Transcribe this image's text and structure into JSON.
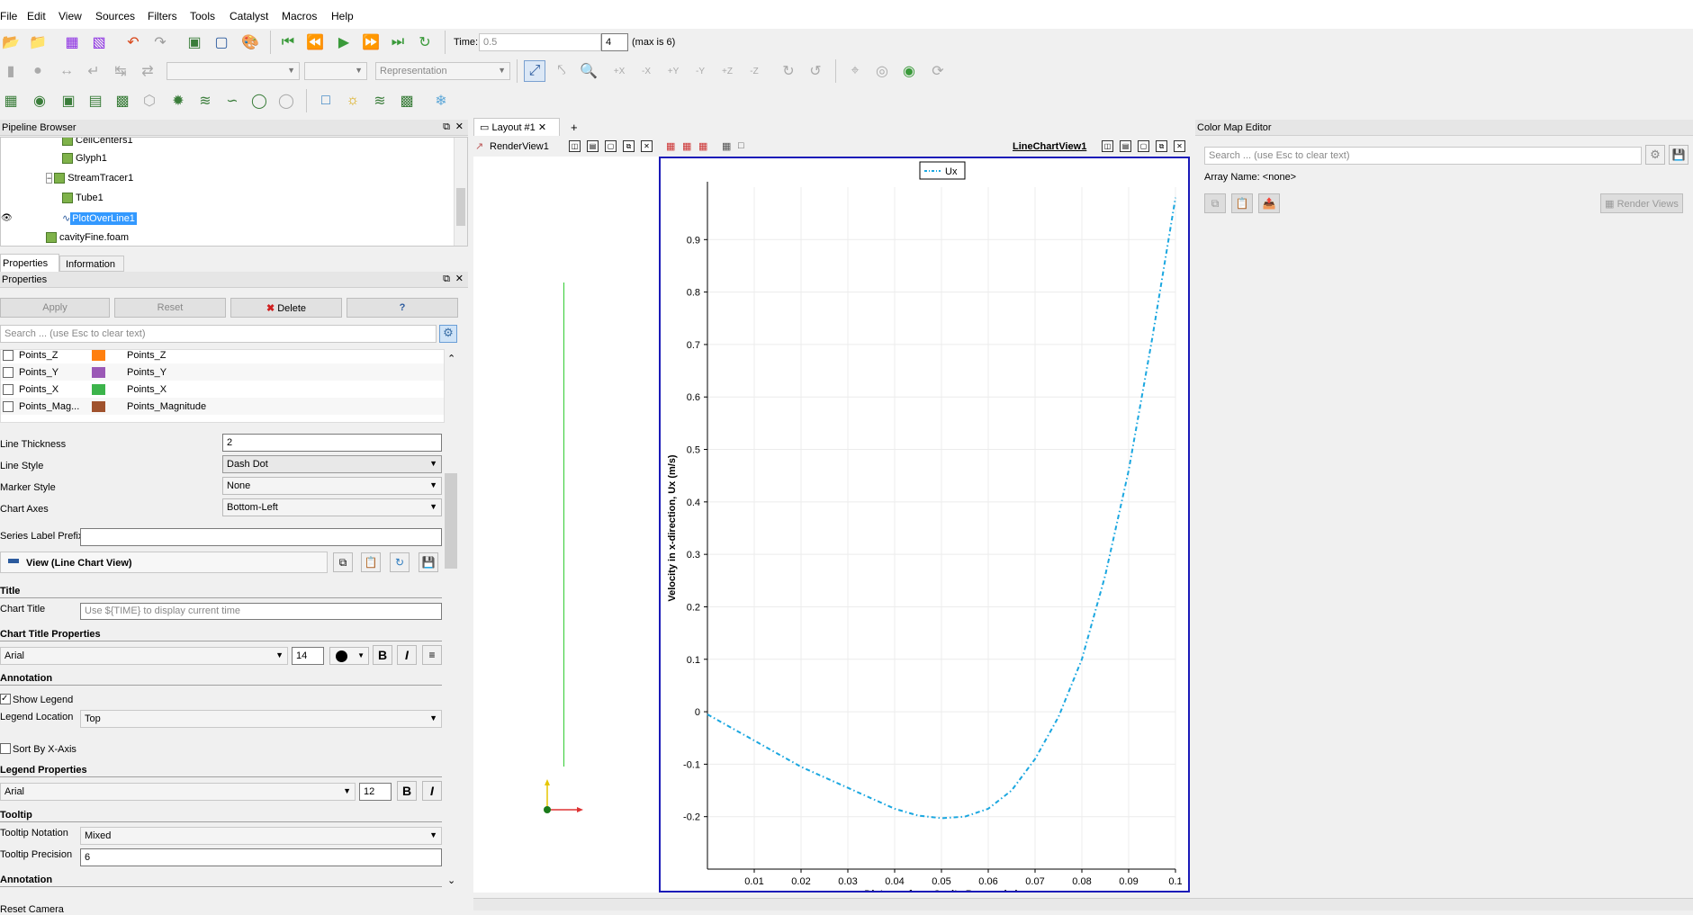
{
  "menu": [
    "File",
    "Edit",
    "View",
    "Sources",
    "Filters",
    "Tools",
    "Catalyst",
    "Macros",
    "Help"
  ],
  "time": {
    "label": "Time:",
    "value": "0.5",
    "step": "4",
    "max": "(max is 6)"
  },
  "toolbar2": {
    "representation": "Representation"
  },
  "pipeline": {
    "header": "Pipeline Browser",
    "items": [
      "CellCenters1",
      "Glyph1",
      "StreamTracer1",
      "Tube1",
      "PlotOverLine1",
      "cavityFine.foam"
    ]
  },
  "tabs": {
    "properties": "Properties",
    "information": "Information"
  },
  "props": {
    "header": "Properties",
    "apply": "Apply",
    "reset": "Reset",
    "delete": "Delete",
    "help": "?",
    "search_placeholder": "Search ... (use Esc to clear text)",
    "series": [
      {
        "name": "Points_Z",
        "label": "Points_Z",
        "color": "#ff7f0e"
      },
      {
        "name": "Points_Y",
        "label": "Points_Y",
        "color": "#9b59b6"
      },
      {
        "name": "Points_X",
        "label": "Points_X",
        "color": "#3cb44b"
      },
      {
        "name": "Points_Mag...",
        "label": "Points_Magnitude",
        "color": "#a0522d"
      }
    ],
    "line_thickness_label": "Line Thickness",
    "line_thickness": "2",
    "line_style_label": "Line Style",
    "line_style": "Dash Dot",
    "marker_style_label": "Marker Style",
    "marker_style": "None",
    "chart_axes_label": "Chart Axes",
    "chart_axes": "Bottom-Left",
    "series_prefix_label": "Series Label Prefix",
    "view_section": "View (Line Chart View)",
    "title_section": "Title",
    "chart_title_label": "Chart Title",
    "chart_title_placeholder": "Use ${TIME} to display current time",
    "chart_title_props": "Chart Title Properties",
    "font1": "Arial",
    "size1": "14",
    "annotation": "Annotation",
    "show_legend": "Show Legend",
    "legend_location_label": "Legend Location",
    "legend_location": "Top",
    "sort_x": "Sort By X-Axis",
    "legend_props": "Legend Properties",
    "font2": "Arial",
    "size2": "12",
    "tooltip": "Tooltip",
    "tooltip_notation_label": "Tooltip Notation",
    "tooltip_notation": "Mixed",
    "tooltip_precision_label": "Tooltip Precision",
    "tooltip_precision": "6",
    "annotation2": "Annotation",
    "reset_camera": "Reset Camera"
  },
  "layout": {
    "tab": "Layout #1",
    "plus": "+",
    "renderview": "RenderView1",
    "lineview": "LineChartView1"
  },
  "colormap": {
    "header": "Color Map Editor",
    "search_placeholder": "Search ... (use Esc to clear text)",
    "array_name": "Array Name: <none>",
    "render_views": "Render Views"
  },
  "chart_data": {
    "type": "line",
    "series": [
      {
        "name": "Ux",
        "color": "#1ba7e0",
        "style": "dash-dot",
        "x": [
          0,
          0.005,
          0.01,
          0.015,
          0.02,
          0.025,
          0.03,
          0.035,
          0.04,
          0.045,
          0.05,
          0.055,
          0.06,
          0.065,
          0.07,
          0.075,
          0.08,
          0.085,
          0.09,
          0.095,
          0.1
        ],
        "y": [
          -0.005,
          -0.03,
          -0.055,
          -0.08,
          -0.105,
          -0.125,
          -0.145,
          -0.165,
          -0.185,
          -0.198,
          -0.203,
          -0.2,
          -0.185,
          -0.15,
          -0.09,
          -0.01,
          0.1,
          0.26,
          0.46,
          0.71,
          0.98
        ]
      }
    ],
    "xlabel": "Distance from Cavity Base, y (m)",
    "ylabel": "Velocity in x-direction, Ux (m/s)",
    "xticks": [
      "0.01",
      "0.02",
      "0.03",
      "0.04",
      "0.05",
      "0.06",
      "0.07",
      "0.08",
      "0.09",
      "0.1"
    ],
    "yticks": [
      "-0.2",
      "-0.1",
      "0",
      "0.1",
      "0.2",
      "0.3",
      "0.4",
      "0.5",
      "0.6",
      "0.7",
      "0.8",
      "0.9"
    ],
    "xlim": [
      0,
      0.1
    ],
    "ylim": [
      -0.3,
      1.0
    ],
    "grid": true,
    "legend": "top"
  }
}
